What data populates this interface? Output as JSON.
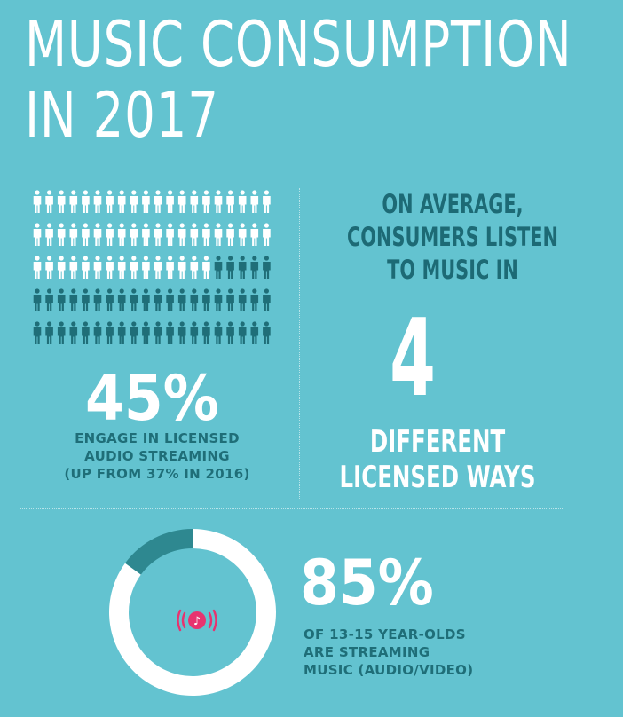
{
  "title_lines": [
    "MUSIC CONSUMPTION",
    "IN 2017"
  ],
  "chart_data": [
    {
      "type": "pictogram",
      "total_icons": 100,
      "highlighted_percent": 45,
      "value_label": "45%",
      "caption_lines": [
        "ENGAGE IN LICENSED",
        "AUDIO STREAMING",
        "(UP FROM 37% IN 2016)"
      ],
      "colors": {
        "highlighted": "#1f6e78",
        "other": "#ffffff"
      }
    },
    {
      "type": "pie",
      "slices": [
        {
          "label": "streaming",
          "value": 85,
          "color": "#ffffff"
        },
        {
          "label": "not streaming",
          "value": 15,
          "color": "#2e8890"
        }
      ],
      "value_label": "85%",
      "caption_lines": [
        "OF 13-15 YEAR-OLDS",
        "ARE STREAMING",
        "MUSIC (AUDIO/VIDEO)"
      ],
      "icon": "music-streaming-icon"
    }
  ],
  "average": {
    "lines": [
      "ON AVERAGE,",
      "CONSUMERS LISTEN",
      "TO MUSIC IN"
    ],
    "number": "4",
    "after_lines": [
      "DIFFERENT",
      "LICENSED WAYS"
    ]
  },
  "colors": {
    "background": "#63c3d0",
    "dark_teal": "#1f6e78",
    "ring_dark": "#2e8890",
    "accent_pink": "#e8336f",
    "white": "#ffffff"
  }
}
